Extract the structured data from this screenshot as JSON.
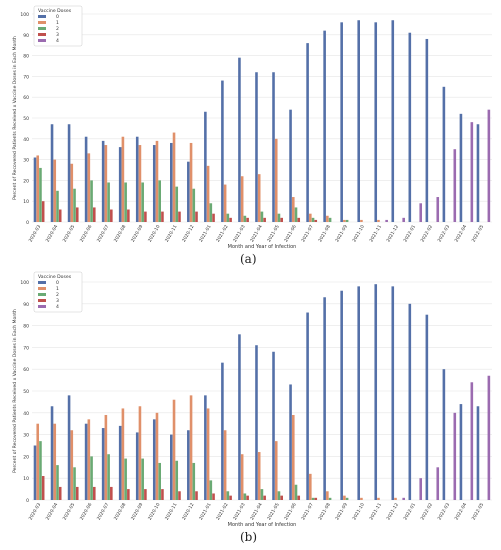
{
  "panel_labels": [
    "(a)",
    "(b)"
  ],
  "colors": {
    "dose0": "#5470a8",
    "dose1": "#e0906a",
    "dose2": "#6aaa74",
    "dose3": "#c0504d",
    "dose4": "#9b6bb0",
    "grid": "#e6e6e6",
    "axis_text": "#333333"
  },
  "chart_data": [
    {
      "type": "bar",
      "title": "",
      "xlabel": "Month and Year of Infection",
      "ylabel": "Percent of Recovered Patients Received x Vaccine Doses in Each Month",
      "ylim": [
        0,
        100
      ],
      "yticks": [
        0,
        10,
        20,
        30,
        40,
        50,
        60,
        70,
        80,
        90,
        100
      ],
      "grid": true,
      "legend": {
        "title": "Vaccine Doses",
        "placement": "top-left"
      },
      "categories": [
        "2020-03",
        "2020-04",
        "2020-05",
        "2020-06",
        "2020-07",
        "2020-08",
        "2020-09",
        "2020-10",
        "2020-11",
        "2020-12",
        "2021-01",
        "2021-02",
        "2021-03",
        "2021-04",
        "2021-05",
        "2021-06",
        "2021-07",
        "2021-08",
        "2021-09",
        "2021-10",
        "2021-11",
        "2021-12",
        "2022-01",
        "2022-02",
        "2022-03",
        "2022-04",
        "2022-05"
      ],
      "series": [
        {
          "name": "0",
          "values": [
            31,
            47,
            47,
            41,
            39,
            36,
            41,
            37,
            38,
            29,
            53,
            68,
            79,
            72,
            72,
            54,
            86,
            92,
            96,
            97,
            96,
            97,
            91,
            88,
            65,
            52,
            47
          ]
        },
        {
          "name": "1",
          "values": [
            32,
            30,
            28,
            33,
            37,
            41,
            37,
            39,
            43,
            38,
            27,
            18,
            22,
            23,
            40,
            12,
            4,
            3,
            1,
            1,
            1,
            0,
            0,
            0,
            0,
            0,
            0
          ]
        },
        {
          "name": "2",
          "values": [
            26,
            15,
            16,
            20,
            19,
            19,
            19,
            20,
            17,
            16,
            9,
            4,
            3,
            5,
            4,
            7,
            2,
            2,
            1,
            0,
            0,
            0,
            0,
            0,
            0,
            0,
            0
          ]
        },
        {
          "name": "3",
          "values": [
            10,
            6,
            7,
            7,
            6,
            6,
            5,
            5,
            5,
            5,
            4,
            2,
            2,
            2,
            2,
            2,
            1,
            0,
            0,
            0,
            0,
            0,
            0,
            0,
            0,
            0,
            0
          ]
        },
        {
          "name": "4",
          "values": [
            0,
            0,
            0,
            0,
            0,
            0,
            0,
            0,
            0,
            0,
            0,
            0,
            0,
            0,
            0,
            0,
            0,
            0,
            0,
            0,
            1,
            2,
            9,
            12,
            35,
            48,
            54
          ]
        }
      ]
    },
    {
      "type": "bar",
      "title": "",
      "xlabel": "Month and Year of Infection",
      "ylabel": "Percent of Recovered Patients Received x Vaccine Doses in Each Month",
      "ylim": [
        0,
        100
      ],
      "yticks": [
        0,
        10,
        20,
        30,
        40,
        50,
        60,
        70,
        80,
        90,
        100
      ],
      "grid": true,
      "legend": {
        "title": "Vaccine Doses",
        "placement": "top-left"
      },
      "categories": [
        "2020-03",
        "2020-04",
        "2020-05",
        "2020-06",
        "2020-07",
        "2020-08",
        "2020-09",
        "2020-10",
        "2020-11",
        "2020-12",
        "2021-01",
        "2021-02",
        "2021-03",
        "2021-04",
        "2021-05",
        "2021-06",
        "2021-07",
        "2021-08",
        "2021-09",
        "2021-10",
        "2021-11",
        "2021-12",
        "2022-01",
        "2022-02",
        "2022-03",
        "2022-04",
        "2022-05"
      ],
      "series": [
        {
          "name": "0",
          "values": [
            25,
            43,
            48,
            35,
            33,
            34,
            31,
            37,
            30,
            32,
            48,
            63,
            76,
            71,
            68,
            53,
            86,
            93,
            96,
            98,
            99,
            98,
            90,
            85,
            60,
            44,
            43
          ]
        },
        {
          "name": "1",
          "values": [
            35,
            35,
            32,
            37,
            39,
            42,
            43,
            40,
            46,
            48,
            42,
            32,
            21,
            22,
            27,
            39,
            12,
            4,
            2,
            1,
            1,
            1,
            0,
            0,
            0,
            0,
            0
          ]
        },
        {
          "name": "2",
          "values": [
            27,
            16,
            15,
            20,
            21,
            19,
            19,
            17,
            18,
            17,
            9,
            4,
            3,
            5,
            4,
            7,
            1,
            1,
            1,
            0,
            0,
            0,
            0,
            0,
            0,
            0,
            0
          ]
        },
        {
          "name": "3",
          "values": [
            11,
            6,
            6,
            6,
            6,
            5,
            5,
            5,
            4,
            4,
            3,
            2,
            2,
            2,
            2,
            2,
            1,
            0,
            0,
            0,
            0,
            0,
            0,
            0,
            0,
            0,
            0
          ]
        },
        {
          "name": "4",
          "values": [
            0,
            0,
            0,
            0,
            0,
            0,
            0,
            0,
            0,
            0,
            0,
            0,
            0,
            0,
            0,
            0,
            0,
            0,
            0,
            0,
            0,
            1,
            10,
            15,
            40,
            54,
            57
          ]
        }
      ]
    }
  ]
}
